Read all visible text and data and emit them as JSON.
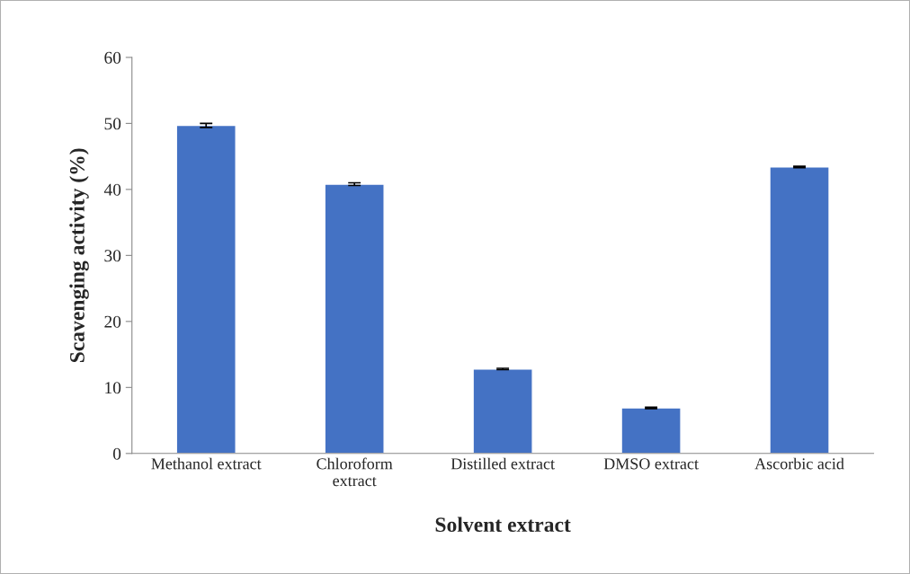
{
  "chart_data": {
    "type": "bar",
    "xlabel": "Solvent extract",
    "ylabel": "Scavenging activity (%)",
    "categories": [
      "Methanol extract",
      "Chloroform\nextract",
      "Distilled extract",
      "DMSO extract",
      "Ascorbic acid"
    ],
    "values": [
      49.7,
      40.8,
      12.8,
      6.9,
      43.4
    ],
    "errors": [
      0.3,
      0.2,
      0.1,
      0.1,
      0.1
    ],
    "color": "#4472c4",
    "ylim": [
      0,
      60
    ],
    "yticks": [
      0,
      10,
      20,
      30,
      40,
      50,
      60
    ],
    "grid": false
  }
}
